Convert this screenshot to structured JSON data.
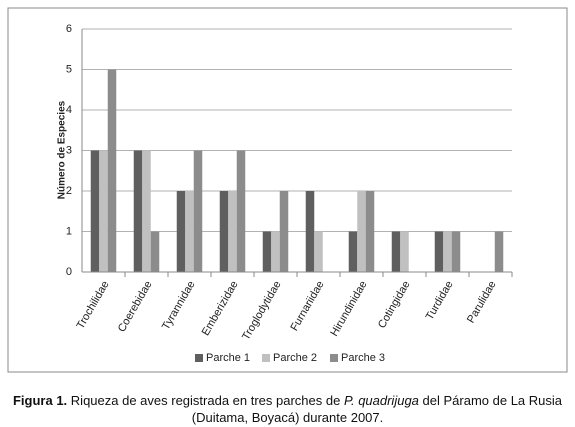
{
  "chart_data": {
    "type": "bar",
    "y_label": "Número de Especies",
    "categories": [
      "Trochilidae",
      "Coerebidae",
      "Tyrannidae",
      "Emberizidae",
      "Troglodytidae",
      "Furnariidae",
      "Hirundinidae",
      "Cotingidae",
      "Turdidae",
      "Parulidae"
    ],
    "series": [
      {
        "name": "Parche 1",
        "color": "#5f5f5f",
        "values": [
          3,
          3,
          2,
          2,
          1,
          2,
          1,
          1,
          1,
          0
        ]
      },
      {
        "name": "Parche 2",
        "color": "#c0c0c0",
        "values": [
          3,
          3,
          2,
          2,
          1,
          1,
          2,
          1,
          1,
          0
        ]
      },
      {
        "name": "Parche 3",
        "color": "#8c8c8c",
        "values": [
          5,
          1,
          3,
          3,
          2,
          0,
          2,
          0,
          1,
          1
        ]
      }
    ],
    "ylim": [
      0,
      6
    ],
    "yticks": [
      0,
      1,
      2,
      3,
      4,
      5,
      6
    ],
    "grid": true,
    "legend": "bottom"
  },
  "caption": {
    "label": "Figura 1.",
    "text_before": "Riqueza de aves registrada en tres parches de",
    "species": "P. quadrijuga",
    "text_after": "del Páramo de La Rusia (Duitama, Boyacá) durante 2007."
  }
}
